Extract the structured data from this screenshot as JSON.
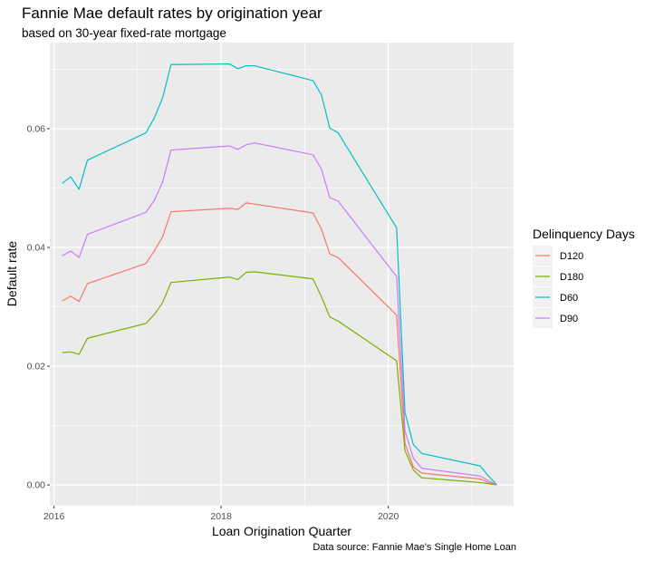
{
  "chart_data": {
    "type": "line",
    "title": "Fannie Mae default rates by origination year",
    "subtitle": "based on 30-year fixed-rate mortgage",
    "caption": "Data source: Fannie Mae's Single Home Loan",
    "xlabel": "Loan Origination Quarter",
    "ylabel": "Default rate",
    "xlim": [
      2015.95,
      2021.5
    ],
    "ylim": [
      -0.0035,
      0.0745
    ],
    "x_ticks": [
      2016,
      2018,
      2020
    ],
    "y_ticks": [
      0.0,
      0.02,
      0.04,
      0.06
    ],
    "y_tick_labels": [
      "0.00",
      "0.02",
      "0.04",
      "0.06"
    ],
    "x_tick_labels": [
      "2016",
      "2018",
      "2020"
    ],
    "grid": true,
    "legend": {
      "title": "Delinquency Days",
      "position": "right",
      "entries": [
        "D120",
        "D180",
        "D60",
        "D90"
      ]
    },
    "colors": {
      "D120": "#F8766D",
      "D180": "#7CAE00",
      "D60": "#00BFC4",
      "D90": "#C77CFF"
    },
    "x": [
      2016.1,
      2016.2,
      2016.3,
      2016.4,
      2017.1,
      2017.2,
      2017.3,
      2017.4,
      2018.1,
      2018.2,
      2018.3,
      2018.4,
      2019.1,
      2019.2,
      2019.3,
      2019.4,
      2020.1,
      2020.2,
      2020.3,
      2020.4,
      2021.1,
      2021.2,
      2021.3
    ],
    "series": [
      {
        "name": "D120",
        "values": [
          0.031,
          0.0318,
          0.0309,
          0.0339,
          0.0373,
          0.0394,
          0.0418,
          0.046,
          0.0466,
          0.0464,
          0.0475,
          0.0473,
          0.0458,
          0.0431,
          0.0389,
          0.0383,
          0.0286,
          0.007,
          0.003,
          0.002,
          0.001,
          0.0004,
          0.0
        ]
      },
      {
        "name": "D180",
        "values": [
          0.0223,
          0.0224,
          0.022,
          0.0247,
          0.0272,
          0.0287,
          0.0307,
          0.0341,
          0.035,
          0.0346,
          0.0358,
          0.0359,
          0.0347,
          0.0317,
          0.0283,
          0.0276,
          0.0209,
          0.0058,
          0.0025,
          0.0012,
          0.0004,
          0.0002,
          0.0
        ]
      },
      {
        "name": "D60",
        "values": [
          0.0508,
          0.0519,
          0.0498,
          0.0547,
          0.0593,
          0.0618,
          0.0652,
          0.0708,
          0.0709,
          0.0701,
          0.0706,
          0.0706,
          0.0681,
          0.0657,
          0.0601,
          0.0593,
          0.0433,
          0.0122,
          0.0068,
          0.0053,
          0.0032,
          0.0015,
          0.0
        ]
      },
      {
        "name": "D90",
        "values": [
          0.0386,
          0.0394,
          0.0383,
          0.0422,
          0.0459,
          0.0479,
          0.051,
          0.0564,
          0.0571,
          0.0565,
          0.0573,
          0.0576,
          0.0556,
          0.0532,
          0.0484,
          0.0478,
          0.0351,
          0.0091,
          0.0045,
          0.0028,
          0.0015,
          0.0007,
          0.0
        ]
      }
    ]
  }
}
